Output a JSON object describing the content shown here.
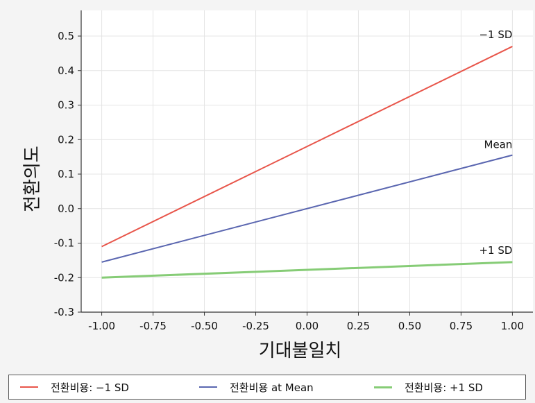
{
  "chart_data": {
    "type": "line",
    "x": [
      -1.0,
      1.0
    ],
    "series": [
      {
        "name": "전환비용: −1 SD",
        "label": "−1 SD",
        "values": [
          -0.11,
          0.47
        ],
        "color": "#e8554a"
      },
      {
        "name": "전환비용 at Mean",
        "label": "Mean",
        "values": [
          -0.155,
          0.155
        ],
        "color": "#5a66b0"
      },
      {
        "name": "전환비용: +1 SD",
        "label": "+1 SD",
        "values": [
          -0.2,
          -0.155
        ],
        "color": "#86cc76"
      }
    ],
    "xlabel": "기대불일치",
    "ylabel": "전환의도",
    "xlim": [
      -1.1,
      1.1
    ],
    "ylim": [
      -0.3,
      0.55
    ],
    "x_ticks": [
      "-1.00",
      "-0.75",
      "-0.50",
      "-0.25",
      "0.00",
      "0.25",
      "0.50",
      "0.75",
      "1.00"
    ],
    "y_ticks": [
      "0.5",
      "0.4",
      "0.3",
      "0.2",
      "0.1",
      "0.0",
      "-0.1",
      "-0.2",
      "-0.3"
    ],
    "grid": true,
    "legend_position": "bottom"
  }
}
